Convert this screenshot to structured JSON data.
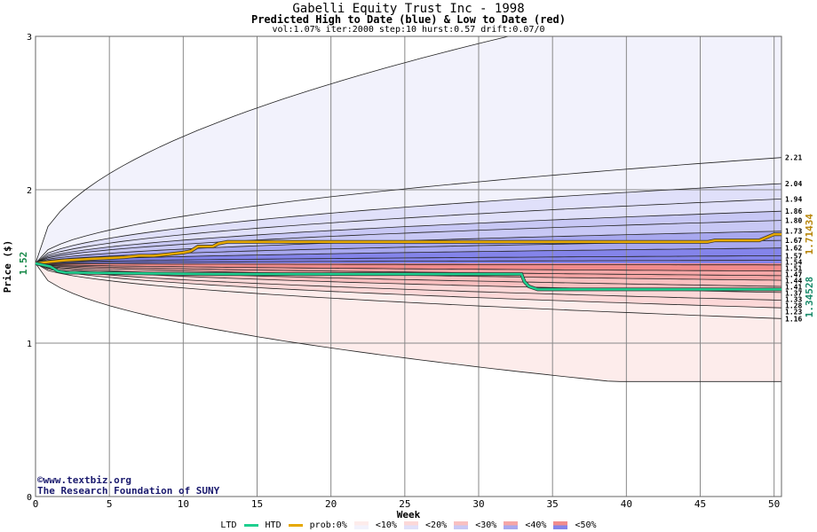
{
  "header": {
    "title": "Gabelli Equity Trust Inc - 1998",
    "subtitle": "Predicted High to Date (blue) &  Low to Date (red)",
    "params": "vol:1.07% iter:2000 step:10 hurst:0.57 drift:0.07/0"
  },
  "credits": {
    "line1": "www.textbiz.org",
    "line2": "The Research Foundation of SUNY"
  },
  "legend": {
    "ltd": "LTD",
    "htd": "HTD",
    "prob": "prob:0%",
    "p10": "<10%",
    "p20": "<20%",
    "p30": "<30%",
    "p40": "<40%",
    "p50": "<50%"
  },
  "colors": {
    "ltd": "#1fcf8f",
    "htd": "#e6a800",
    "blue_bands": [
      "#f2f2fc",
      "#e0e0fa",
      "#c8c8f5",
      "#a8a8ef",
      "#8484ea"
    ],
    "red_bands": [
      "#fdeceb",
      "#fcd8d8",
      "#f9c0c0",
      "#f6a6a6",
      "#f28c8c"
    ]
  },
  "chart_data": {
    "type": "area",
    "title": "Gabelli Equity Trust Inc - 1998",
    "xlabel": "Week",
    "ylabel": "Price ($)",
    "xlim": [
      0,
      50.5
    ],
    "ylim": [
      0,
      3
    ],
    "x_ticks": [
      0,
      5,
      10,
      15,
      20,
      25,
      30,
      35,
      40,
      45,
      50
    ],
    "y_ticks": [
      0,
      1,
      2,
      3
    ],
    "grid": true,
    "start_price": 1.52,
    "start_price_label": "1.52",
    "upper_bands_end": [
      2.21,
      2.04,
      1.94,
      1.86,
      1.8,
      1.73,
      1.67,
      1.62,
      1.57,
      1.54
    ],
    "upper_bands_end_labels": [
      "2.21",
      "2.04",
      "1.94",
      "1.86",
      "1.80",
      "1.73",
      "1.67",
      "1.62",
      "1.57",
      "1.54"
    ],
    "lower_bands_end": [
      1.51,
      1.47,
      1.44,
      1.41,
      1.37,
      1.33,
      1.28,
      1.23,
      1.16
    ],
    "lower_bands_end_labels": [
      "1.51",
      "1.47",
      "1.44",
      "1.41",
      "1.37",
      "1.33",
      "1.28",
      "1.23",
      "1.16"
    ],
    "outer_upper_reach_3_at_week": 32,
    "outer_lower_end": 0.75,
    "series": [
      {
        "name": "HTD",
        "x": [
          0,
          1,
          2,
          4,
          6,
          7,
          8,
          9,
          10,
          10.5,
          11,
          12,
          12.4,
          13,
          20,
          30,
          40,
          45.5,
          46,
          49,
          50,
          50.5
        ],
        "values": [
          1.52,
          1.53,
          1.54,
          1.55,
          1.56,
          1.57,
          1.57,
          1.58,
          1.59,
          1.6,
          1.63,
          1.63,
          1.65,
          1.66,
          1.66,
          1.66,
          1.66,
          1.66,
          1.67,
          1.67,
          1.71,
          1.71
        ]
      },
      {
        "name": "LTD",
        "x": [
          0,
          0.5,
          1,
          1.5,
          2,
          12,
          32.9,
          33.1,
          33.4,
          34,
          50.5
        ],
        "values": [
          1.52,
          1.51,
          1.5,
          1.47,
          1.46,
          1.45,
          1.45,
          1.4,
          1.37,
          1.35,
          1.35
        ]
      }
    ],
    "htd_final_label": "1.71434",
    "ltd_final_label": "1.34528"
  }
}
